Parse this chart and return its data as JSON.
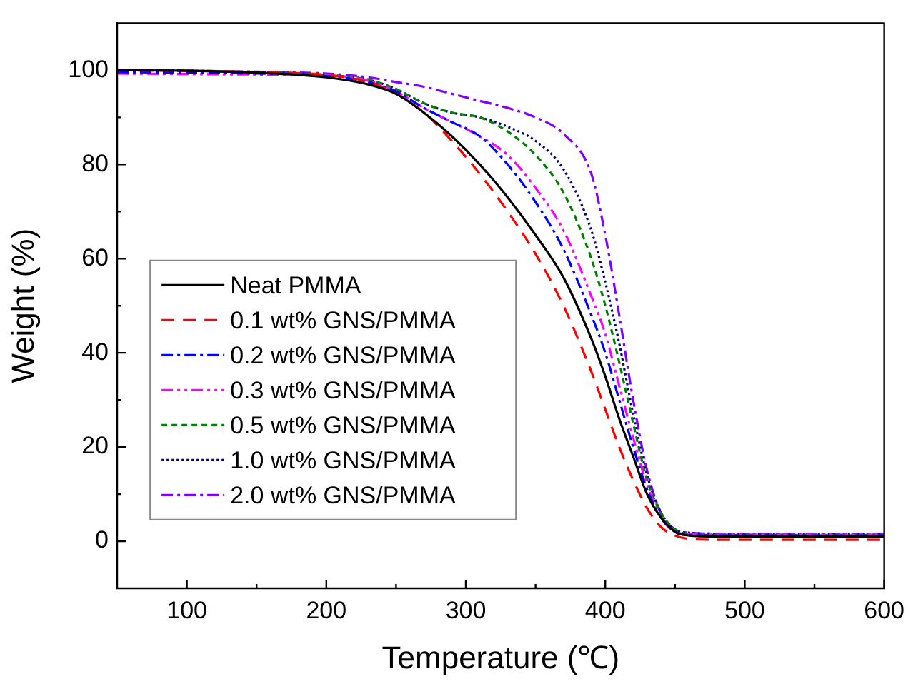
{
  "chart_data": {
    "type": "line",
    "xlabel": "Temperature (℃)",
    "ylabel": "Weight (%)",
    "x": [
      50,
      100,
      150,
      200,
      230,
      250,
      270,
      290,
      310,
      330,
      350,
      370,
      390,
      400,
      410,
      420,
      430,
      440,
      450,
      460,
      480,
      500,
      600
    ],
    "xlim": [
      50,
      600
    ],
    "xticks": [
      100,
      200,
      300,
      400,
      500,
      600
    ],
    "ylim": [
      -10,
      110
    ],
    "yticks": [
      0,
      20,
      40,
      60,
      80,
      100
    ],
    "grid": false,
    "legend": "left",
    "marker": "none",
    "series": [
      {
        "name": "Neat PMMA",
        "color": "#000000",
        "line_style": "solid",
        "values": [
          100,
          99.9,
          99.5,
          98.5,
          97,
          95,
          91,
          86,
          80,
          73,
          65,
          56,
          43,
          35,
          26,
          18,
          10,
          5,
          2,
          1.2,
          1,
          1,
          1
        ]
      },
      {
        "name": "0.1 wt% GNS/PMMA",
        "color": "#ff0000",
        "line_style": "dashed",
        "values": [
          100,
          99.9,
          99.6,
          99,
          97.5,
          95,
          91,
          85,
          78,
          70,
          61,
          50,
          36,
          28,
          20,
          13,
          7,
          3,
          1.2,
          0.5,
          0.3,
          0.3,
          0.3
        ]
      },
      {
        "name": "0.2 wt% GNS/PMMA",
        "color": "#0000ff",
        "line_style": "dashdot",
        "values": [
          99.6,
          99.5,
          99.3,
          98.8,
          97.5,
          95.5,
          92,
          89,
          86,
          80,
          72,
          62,
          48,
          40,
          30,
          20,
          11,
          5,
          2,
          1.3,
          1.2,
          1.2,
          1.2
        ]
      },
      {
        "name": "0.3 wt% GNS/PMMA",
        "color": "#ff00ff",
        "line_style": "dashdotdot",
        "values": [
          99.3,
          99.2,
          99.1,
          98.9,
          97.8,
          95.5,
          92,
          89,
          86,
          82,
          75,
          66,
          52,
          44,
          33,
          22,
          12,
          5,
          2,
          1.5,
          1.4,
          1.4,
          1.4
        ]
      },
      {
        "name": "0.5 wt% GNS/PMMA",
        "color": "#008000",
        "line_style": "shortdash",
        "values": [
          100,
          99.9,
          99.6,
          99,
          98,
          96,
          93,
          91,
          90,
          87,
          82,
          74,
          60,
          50,
          38,
          25,
          13,
          6,
          2.5,
          1.5,
          1.3,
          1.3,
          1.3
        ]
      },
      {
        "name": "1.0 wt% GNS/PMMA",
        "color": "#000080",
        "line_style": "dotted",
        "values": [
          100,
          99.9,
          99.6,
          99,
          98,
          96,
          93,
          91,
          90,
          88,
          85,
          79,
          66,
          55,
          42,
          27,
          14,
          6,
          2.5,
          1.8,
          1.6,
          1.6,
          1.6
        ]
      },
      {
        "name": "2.0 wt% GNS/PMMA",
        "color": "#8000ff",
        "line_style": "dashdot",
        "values": [
          100,
          99.9,
          99.7,
          99.3,
          98.5,
          97.5,
          96.5,
          95,
          93.5,
          92,
          90,
          86.5,
          78,
          65,
          48,
          30,
          15,
          6,
          2.5,
          1.8,
          1.6,
          1.6,
          1.6
        ]
      }
    ]
  }
}
